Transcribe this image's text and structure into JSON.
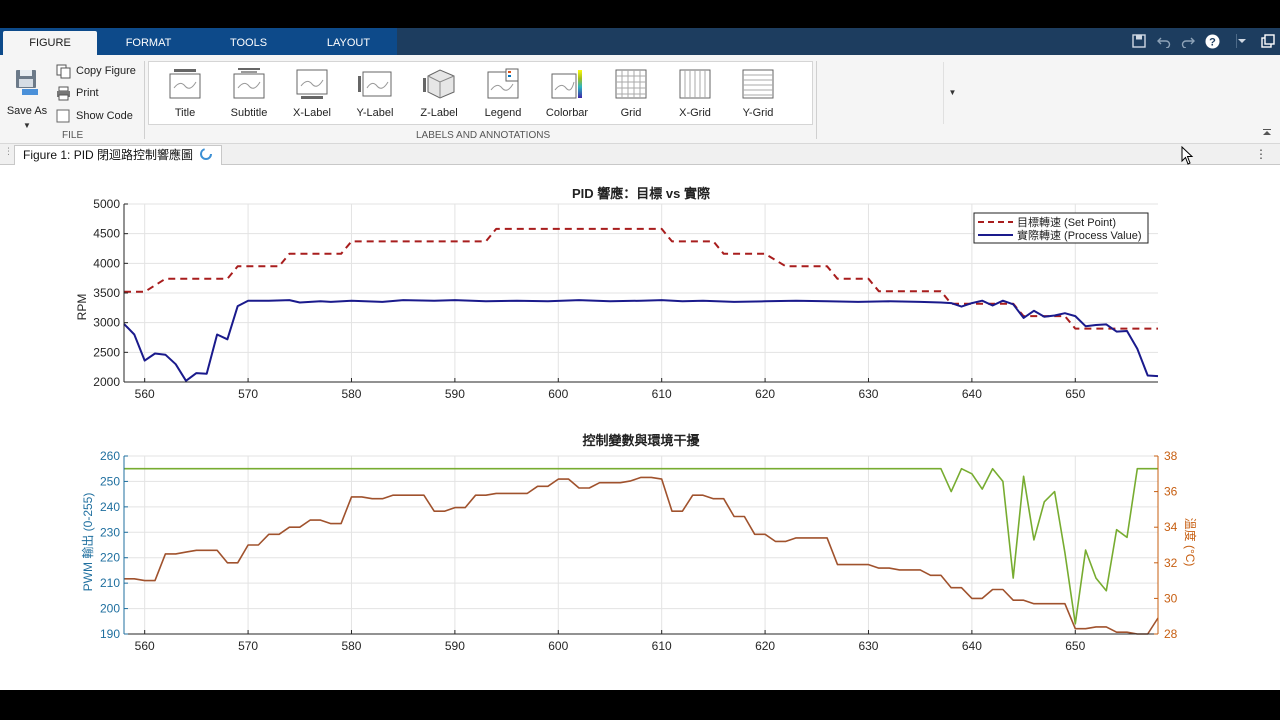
{
  "ribbon_tabs": [
    "FIGURE",
    "FORMAT",
    "TOOLS",
    "LAYOUT"
  ],
  "quick_access": [
    "save-icon",
    "undo-icon",
    "redo-icon",
    "help-icon",
    "dropdown-icon",
    "undock-icon"
  ],
  "file_section": {
    "save_as": "Save As",
    "copy_figure": "Copy Figure",
    "print": "Print",
    "show_code": "Show Code",
    "caption": "FILE"
  },
  "labels_section": {
    "caption": "LABELS AND ANNOTATIONS",
    "items": [
      "Title",
      "Subtitle",
      "X-Label",
      "Y-Label",
      "Z-Label",
      "Legend",
      "Colorbar",
      "Grid",
      "X-Grid",
      "Y-Grid"
    ]
  },
  "figure_tab": "Figure 1: PID 閉迴路控制響應圖",
  "colors": {
    "setpoint": "#a81d1d",
    "process": "#1a1a8c",
    "pwm": "#77ac30",
    "temp": "#a0522d",
    "left_axis_text": "#1f6f9f",
    "right_axis_text": "#c75f12"
  },
  "chart_data": [
    {
      "type": "line",
      "title": "PID 響應：目標 vs 實際",
      "ylabel": "RPM",
      "xlim": [
        558,
        658
      ],
      "ylim": [
        2000,
        5000
      ],
      "xticks": [
        560,
        570,
        580,
        590,
        600,
        610,
        620,
        630,
        640,
        650
      ],
      "yticks": [
        2000,
        2500,
        3000,
        3500,
        4000,
        4500,
        5000
      ],
      "grid": true,
      "legend_position": "top-right",
      "series": [
        {
          "name": "目標轉速 (Set Point)",
          "style": "dashed",
          "x": [
            558,
            560,
            562,
            568,
            569,
            573,
            574,
            579,
            580,
            588,
            593,
            594,
            610,
            611,
            615,
            616,
            619,
            620,
            622,
            623,
            626,
            627,
            630,
            631,
            637,
            638,
            641,
            642,
            644,
            645,
            649,
            650,
            658
          ],
          "y": [
            3520,
            3520,
            3740,
            3740,
            3950,
            3950,
            4160,
            4160,
            4370,
            4370,
            4370,
            4580,
            4580,
            4370,
            4370,
            4160,
            4160,
            4160,
            3950,
            3950,
            3950,
            3740,
            3740,
            3530,
            3530,
            3320,
            3320,
            3320,
            3320,
            3110,
            3110,
            2900,
            2900
          ]
        },
        {
          "name": "實際轉速 (Process Value)",
          "style": "solid",
          "x": [
            558,
            559,
            560,
            561,
            562,
            563,
            564,
            565,
            566,
            567,
            568,
            569,
            570,
            572,
            574,
            575,
            577,
            578,
            580,
            583,
            585,
            588,
            590,
            593,
            596,
            599,
            602,
            605,
            608,
            610,
            612,
            614,
            617,
            620,
            623,
            626,
            629,
            632,
            635,
            637,
            638,
            639,
            640,
            641,
            642,
            643,
            644,
            645,
            646,
            647,
            648,
            649,
            650,
            651,
            652,
            653,
            654,
            655,
            656,
            657,
            658
          ],
          "y": [
            2980,
            2800,
            2360,
            2480,
            2460,
            2300,
            2020,
            2150,
            2140,
            2800,
            2720,
            3280,
            3370,
            3370,
            3380,
            3340,
            3360,
            3350,
            3370,
            3350,
            3380,
            3370,
            3380,
            3360,
            3370,
            3360,
            3380,
            3360,
            3370,
            3380,
            3360,
            3370,
            3350,
            3360,
            3370,
            3360,
            3350,
            3360,
            3350,
            3340,
            3330,
            3270,
            3330,
            3370,
            3290,
            3370,
            3310,
            3080,
            3200,
            3100,
            3120,
            3160,
            3110,
            2940,
            2960,
            2970,
            2850,
            2860,
            2560,
            2110,
            2100
          ]
        }
      ]
    },
    {
      "type": "line",
      "title": "控制變數與環境干擾",
      "ylabel": "PWM 輸出 (0-255)",
      "y2label": "溫度 (°C)",
      "xlim": [
        558,
        658
      ],
      "ylim": [
        190,
        260
      ],
      "y2lim": [
        28,
        38
      ],
      "xticks": [
        560,
        570,
        580,
        590,
        600,
        610,
        620,
        630,
        640,
        650
      ],
      "yticks": [
        190,
        200,
        210,
        220,
        230,
        240,
        250,
        260
      ],
      "y2ticks": [
        28,
        30,
        32,
        34,
        36,
        38
      ],
      "grid": true,
      "series": [
        {
          "axis": "left",
          "x": [
            558,
            637,
            638,
            639,
            640,
            641,
            642,
            643,
            644,
            645,
            646,
            647,
            648,
            649,
            650,
            651,
            652,
            653,
            654,
            655,
            656,
            657,
            658
          ],
          "y": [
            255,
            255,
            246,
            255,
            253,
            247,
            255,
            250,
            212,
            252,
            227,
            242,
            246,
            222,
            194,
            223,
            212,
            207,
            231,
            228,
            255,
            255,
            255
          ]
        },
        {
          "axis": "right",
          "x": [
            558,
            559,
            560,
            561,
            562,
            563,
            564,
            565,
            566,
            567,
            568,
            569,
            570,
            571,
            572,
            573,
            574,
            575,
            576,
            577,
            578,
            579,
            580,
            581,
            582,
            583,
            584,
            585,
            586,
            587,
            588,
            589,
            590,
            591,
            592,
            593,
            594,
            595,
            596,
            597,
            598,
            599,
            600,
            601,
            602,
            603,
            604,
            605,
            606,
            607,
            608,
            609,
            610,
            611,
            612,
            613,
            614,
            615,
            616,
            617,
            618,
            619,
            620,
            621,
            622,
            623,
            624,
            625,
            626,
            627,
            628,
            629,
            630,
            631,
            632,
            633,
            634,
            635,
            636,
            637,
            638,
            639,
            640,
            641,
            642,
            643,
            644,
            645,
            646,
            647,
            648,
            649,
            650,
            651,
            652,
            653,
            654,
            655,
            656,
            657,
            658
          ],
          "y": [
            31.1,
            31.1,
            31.0,
            31.0,
            32.5,
            32.5,
            32.6,
            32.7,
            32.7,
            32.7,
            32.0,
            32.0,
            33.0,
            33.0,
            33.6,
            33.6,
            34.0,
            34.0,
            34.4,
            34.4,
            34.2,
            34.2,
            35.7,
            35.7,
            35.6,
            35.6,
            35.8,
            35.8,
            35.8,
            35.8,
            34.9,
            34.9,
            35.1,
            35.1,
            35.8,
            35.8,
            35.9,
            35.9,
            35.9,
            35.9,
            36.3,
            36.3,
            36.7,
            36.7,
            36.2,
            36.2,
            36.5,
            36.5,
            36.5,
            36.6,
            36.8,
            36.8,
            36.7,
            34.9,
            34.9,
            35.8,
            35.8,
            35.6,
            35.6,
            34.6,
            34.6,
            33.6,
            33.6,
            33.2,
            33.2,
            33.4,
            33.4,
            33.4,
            33.4,
            31.9,
            31.9,
            31.9,
            31.9,
            31.7,
            31.7,
            31.6,
            31.6,
            31.6,
            31.3,
            31.3,
            30.6,
            30.6,
            30.0,
            30.0,
            30.5,
            30.5,
            29.9,
            29.9,
            29.7,
            29.7,
            29.7,
            29.7,
            28.3,
            28.3,
            28.4,
            28.4,
            28.1,
            28.1,
            28.0,
            28.0,
            28.9
          ]
        }
      ]
    }
  ]
}
